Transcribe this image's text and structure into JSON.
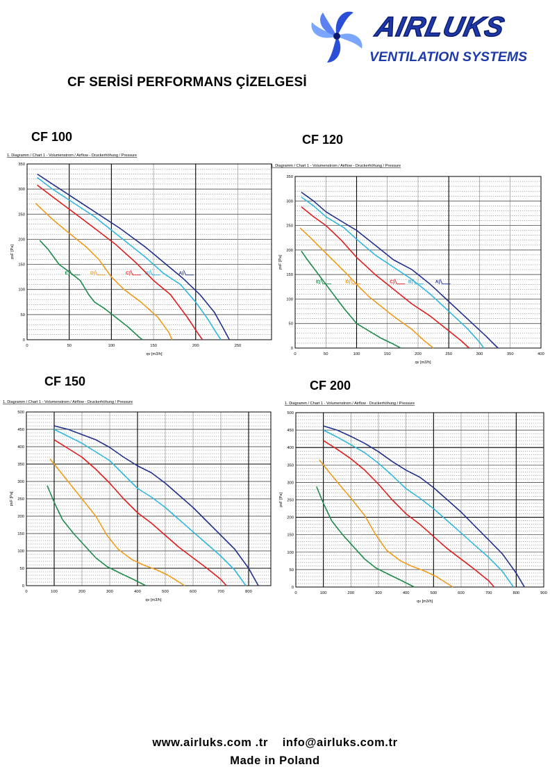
{
  "brand": {
    "name": "AIRLUKS",
    "tagline": "VENTILATION SYSTEMS",
    "colors": {
      "primary": "#1e3aa8",
      "dark": "#0d1a6e",
      "light": "#8fb0ff"
    }
  },
  "page_title": "CF SERİSİ PERFORMANS ÇİZELGESİ",
  "footer": {
    "web": "www.airluks.com .tr",
    "email": "info@airluks.com.tr",
    "origin": "Made in Poland"
  },
  "chart_names": [
    "CF 100",
    "CF 120",
    "CF 150",
    "CF 200"
  ],
  "series_colors": {
    "A": "#1f2f8c",
    "B": "#2fb6e0",
    "C": "#e01b1b",
    "D": "#f29a1a",
    "E": "#1e8a4a"
  },
  "chart_data": [
    {
      "type": "line",
      "header": "1. Diagramm / Chart 1 - Volumenstrom / Airflow - Druckerhöhung / Pressure",
      "xlabel": "qv [m3/h]",
      "ylabel": "psF [Pa]",
      "xlim": [
        0,
        290
      ],
      "ylim": [
        0,
        350
      ],
      "xticks": [
        0,
        50,
        100,
        150,
        200,
        250
      ],
      "yticks": [
        0,
        50,
        100,
        150,
        200,
        250,
        300,
        350
      ],
      "major_vlines": [
        50,
        100,
        200
      ],
      "grid": true,
      "series": [
        {
          "name": "A)",
          "color": "#1f2f8c",
          "x": [
            12,
            30,
            50,
            80,
            110,
            140,
            165,
            185,
            205,
            222,
            232,
            240
          ],
          "y": [
            330,
            310,
            288,
            255,
            222,
            185,
            150,
            122,
            90,
            55,
            25,
            0
          ],
          "label_at": [
            180,
            133
          ]
        },
        {
          "name": "B)",
          "color": "#2fb6e0",
          "x": [
            12,
            30,
            50,
            80,
            110,
            140,
            162,
            182,
            200,
            214,
            224,
            230
          ],
          "y": [
            323,
            300,
            278,
            245,
            205,
            165,
            132,
            110,
            75,
            42,
            15,
            0
          ],
          "label_at": [
            140,
            133
          ]
        },
        {
          "name": "C)",
          "color": "#e01b1b",
          "x": [
            12,
            30,
            50,
            80,
            105,
            130,
            150,
            170,
            190,
            203,
            208
          ],
          "y": [
            308,
            285,
            260,
            222,
            190,
            152,
            118,
            90,
            45,
            12,
            0
          ],
          "label_at": [
            117,
            133
          ]
        },
        {
          "name": "D)",
          "color": "#f29a1a",
          "x": [
            10,
            30,
            50,
            70,
            85,
            100,
            115,
            135,
            155,
            168,
            172
          ],
          "y": [
            272,
            240,
            212,
            185,
            160,
            125,
            100,
            75,
            45,
            15,
            0
          ],
          "label_at": [
            75,
            133
          ]
        },
        {
          "name": "E)",
          "color": "#1e8a4a",
          "x": [
            15,
            25,
            38,
            50,
            63,
            73,
            80,
            92,
            105,
            120,
            133,
            137
          ],
          "y": [
            198,
            180,
            150,
            135,
            118,
            90,
            75,
            62,
            45,
            25,
            5,
            0
          ],
          "label_at": [
            45,
            133
          ]
        }
      ]
    },
    {
      "type": "line",
      "header": "1. Diagramm / Chart 1 - Volumenstrom / Airflow - Druckerhöhung / Pressure",
      "xlabel": "qv [m3/h]",
      "ylabel": "psF [Pa]",
      "xlim": [
        0,
        400
      ],
      "ylim": [
        0,
        350
      ],
      "xticks": [
        0,
        50,
        100,
        150,
        200,
        250,
        300,
        350,
        400
      ],
      "yticks": [
        0,
        50,
        100,
        150,
        200,
        250,
        300,
        350
      ],
      "major_vlines": [
        100,
        250
      ],
      "grid": true,
      "series": [
        {
          "name": "A)",
          "color": "#1f2f8c",
          "x": [
            10,
            30,
            50,
            80,
            100,
            130,
            160,
            190,
            220,
            250,
            280,
            310,
            330
          ],
          "y": [
            318,
            300,
            278,
            255,
            240,
            210,
            180,
            160,
            130,
            95,
            60,
            25,
            0
          ],
          "label_at": [
            228,
            135
          ]
        },
        {
          "name": "B)",
          "color": "#2fb6e0",
          "x": [
            10,
            30,
            50,
            80,
            100,
            130,
            160,
            190,
            220,
            250,
            280,
            300,
            307
          ],
          "y": [
            308,
            290,
            268,
            245,
            222,
            190,
            165,
            140,
            110,
            75,
            40,
            12,
            0
          ],
          "label_at": [
            184,
            135
          ]
        },
        {
          "name": "C)",
          "color": "#e01b1b",
          "x": [
            10,
            30,
            50,
            75,
            100,
            130,
            160,
            190,
            220,
            250,
            270,
            283
          ],
          "y": [
            288,
            268,
            250,
            220,
            185,
            150,
            120,
            90,
            65,
            35,
            15,
            0
          ],
          "label_at": [
            154,
            135
          ]
        },
        {
          "name": "D)",
          "color": "#f29a1a",
          "x": [
            8,
            25,
            45,
            65,
            85,
            100,
            120,
            140,
            160,
            190,
            210,
            225
          ],
          "y": [
            245,
            225,
            200,
            175,
            150,
            130,
            105,
            85,
            65,
            38,
            15,
            0
          ],
          "label_at": [
            82,
            135
          ]
        },
        {
          "name": "E)",
          "color": "#1e8a4a",
          "x": [
            10,
            20,
            35,
            50,
            65,
            80,
            100,
            120,
            140,
            160,
            172
          ],
          "y": [
            198,
            180,
            155,
            130,
            105,
            80,
            50,
            35,
            20,
            8,
            0
          ],
          "label_at": [
            34,
            135
          ]
        }
      ]
    },
    {
      "type": "line",
      "header": "1. Diagramm / Chart 1 - Volumenstrom / Airflow - Druckerhöhung / Pressure",
      "xlabel": "qv [m3/h]",
      "ylabel": "psF [Pa]",
      "xlim": [
        0,
        880
      ],
      "ylim": [
        0,
        500
      ],
      "xticks": [
        0,
        100,
        200,
        300,
        400,
        500,
        600,
        700,
        800
      ],
      "yticks": [
        0,
        50,
        100,
        150,
        200,
        250,
        300,
        350,
        400,
        450,
        500
      ],
      "major_vlines": [
        100,
        400,
        800
      ],
      "major_hlines": [
        50,
        350
      ],
      "grid": true,
      "series": [
        {
          "name": "A)",
          "color": "#1f2f8c",
          "x": [
            100,
            150,
            200,
            250,
            300,
            350,
            400,
            450,
            500,
            550,
            600,
            650,
            700,
            750,
            800,
            835
          ],
          "y": [
            460,
            450,
            435,
            420,
            398,
            370,
            345,
            325,
            295,
            260,
            225,
            185,
            145,
            105,
            50,
            0
          ]
        },
        {
          "name": "B)",
          "color": "#2fb6e0",
          "x": [
            100,
            150,
            200,
            250,
            300,
            350,
            400,
            450,
            500,
            550,
            600,
            650,
            700,
            750,
            790
          ],
          "y": [
            450,
            430,
            410,
            385,
            360,
            320,
            280,
            255,
            225,
            190,
            155,
            120,
            85,
            45,
            0
          ]
        },
        {
          "name": "C)",
          "color": "#e01b1b",
          "x": [
            100,
            150,
            200,
            250,
            300,
            350,
            400,
            450,
            500,
            550,
            600,
            650,
            700,
            720
          ],
          "y": [
            420,
            395,
            370,
            335,
            295,
            250,
            210,
            180,
            145,
            110,
            80,
            50,
            18,
            0
          ]
        },
        {
          "name": "D)",
          "color": "#f29a1a",
          "x": [
            85,
            120,
            160,
            200,
            250,
            290,
            330,
            380,
            420,
            470,
            510,
            550,
            570
          ],
          "y": [
            365,
            330,
            290,
            250,
            200,
            145,
            105,
            75,
            60,
            45,
            30,
            10,
            0
          ]
        },
        {
          "name": "E)",
          "color": "#1e8a4a",
          "x": [
            75,
            100,
            130,
            170,
            210,
            250,
            290,
            340,
            380,
            410,
            430
          ],
          "y": [
            288,
            240,
            190,
            150,
            115,
            80,
            55,
            35,
            20,
            8,
            0
          ]
        }
      ]
    },
    {
      "type": "line",
      "header": "1. Diagramm / Chart 1 · Volumenstrom / Airflow · Druckerhöhung / Pressure",
      "xlabel": "qv [m3/h]",
      "ylabel": "psF [Pa]",
      "xlim": [
        0,
        900
      ],
      "ylim": [
        0,
        500
      ],
      "xticks": [
        0,
        100,
        200,
        300,
        400,
        500,
        600,
        700,
        800,
        900
      ],
      "yticks": [
        0,
        50,
        100,
        150,
        200,
        250,
        300,
        350,
        400,
        450,
        500
      ],
      "major_vlines": [
        100,
        500,
        800
      ],
      "major_hlines": [
        200,
        400
      ],
      "grid": true,
      "series": [
        {
          "name": "A)",
          "color": "#1f2f8c",
          "x": [
            100,
            150,
            200,
            250,
            300,
            350,
            400,
            450,
            500,
            550,
            600,
            650,
            700,
            750,
            800,
            830
          ],
          "y": [
            462,
            450,
            432,
            412,
            388,
            360,
            335,
            315,
            285,
            250,
            215,
            175,
            135,
            95,
            40,
            0
          ]
        },
        {
          "name": "B)",
          "color": "#2fb6e0",
          "x": [
            100,
            150,
            200,
            250,
            300,
            350,
            400,
            450,
            500,
            550,
            600,
            650,
            700,
            750,
            790
          ],
          "y": [
            450,
            430,
            408,
            385,
            355,
            320,
            282,
            255,
            225,
            190,
            155,
            120,
            85,
            45,
            0
          ]
        },
        {
          "name": "C)",
          "color": "#e01b1b",
          "x": [
            100,
            150,
            200,
            250,
            300,
            350,
            400,
            450,
            500,
            550,
            600,
            650,
            700,
            720
          ],
          "y": [
            420,
            395,
            368,
            335,
            295,
            250,
            210,
            180,
            145,
            110,
            80,
            50,
            18,
            0
          ]
        },
        {
          "name": "D)",
          "color": "#f29a1a",
          "x": [
            85,
            120,
            160,
            200,
            250,
            290,
            330,
            380,
            420,
            470,
            510,
            550,
            570
          ],
          "y": [
            365,
            330,
            292,
            255,
            205,
            150,
            105,
            75,
            60,
            45,
            30,
            10,
            0
          ]
        },
        {
          "name": "E)",
          "color": "#1e8a4a",
          "x": [
            75,
            100,
            130,
            170,
            210,
            250,
            290,
            340,
            380,
            410,
            430
          ],
          "y": [
            288,
            240,
            190,
            150,
            115,
            80,
            55,
            35,
            20,
            8,
            0
          ]
        }
      ]
    }
  ]
}
